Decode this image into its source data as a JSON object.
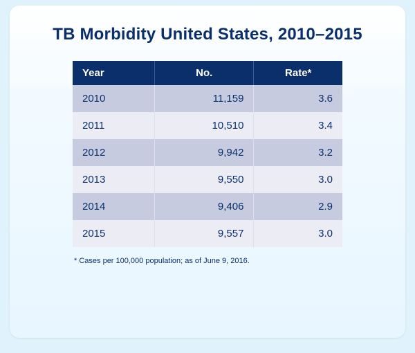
{
  "title": "TB Morbidity United States, 2010–2015",
  "table": {
    "type": "table",
    "columns": [
      "Year",
      "No.",
      "Rate*"
    ],
    "column_align": [
      "left",
      "right",
      "right"
    ],
    "rows": [
      [
        "2010",
        "11,159",
        "3.6"
      ],
      [
        "2011",
        "10,510",
        "3.4"
      ],
      [
        "2012",
        "9,942",
        "3.2"
      ],
      [
        "2013",
        "9,550",
        "3.0"
      ],
      [
        "2014",
        "9,406",
        "2.9"
      ],
      [
        "2015",
        "9,557",
        "3.0"
      ]
    ],
    "header_bg": "#0a2f6b",
    "header_text_color": "#ffffff",
    "row_odd_bg": "#c7cbe0",
    "row_even_bg": "#ebecf4",
    "cell_text_color": "#0a2f6b",
    "border_color": "#dcdfec",
    "font_size_pt": 11
  },
  "footnote": "*  Cases per 100,000 population; as of June 9, 2016.",
  "panel_bg_gradient": [
    "#ffffff",
    "#f2faff",
    "#e8f6ff"
  ],
  "page_bg": "#e0f2fb",
  "title_color": "#0a2f6b",
  "title_fontsize_pt": 18
}
